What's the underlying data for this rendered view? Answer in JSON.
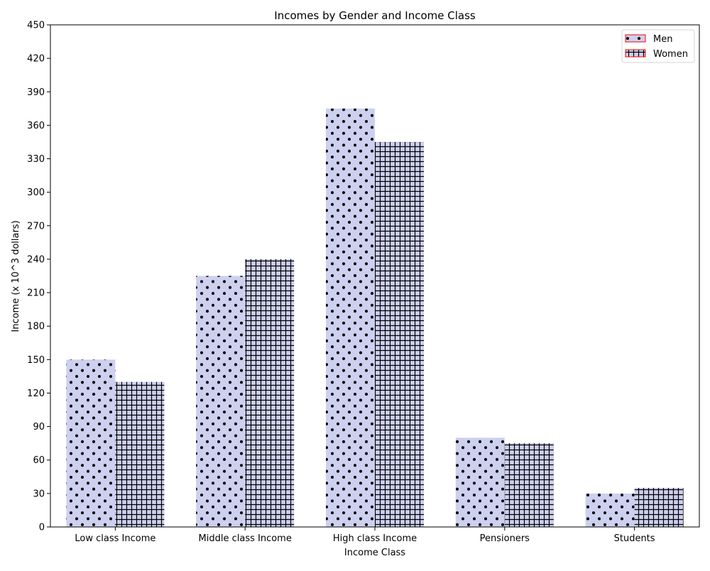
{
  "chart_data": {
    "type": "bar",
    "title": "Incomes by Gender and Income Class",
    "xlabel": "Income Class",
    "ylabel": "Income (x 10^3 dollars)",
    "categories": [
      "Low class Income",
      "Middle class Income",
      "High class Income",
      "Pensioners",
      "Students"
    ],
    "series": [
      {
        "name": "Men",
        "values": [
          150,
          225,
          375,
          80,
          30
        ],
        "hatch": "dots"
      },
      {
        "name": "Women",
        "values": [
          130,
          240,
          345,
          75,
          35
        ],
        "hatch": "grid"
      }
    ],
    "ylim": [
      0,
      450
    ],
    "yticks": [
      0,
      30,
      60,
      90,
      120,
      150,
      180,
      210,
      240,
      270,
      300,
      330,
      360,
      390,
      420,
      450
    ],
    "legend_position": "top-right",
    "grid": false,
    "colors": {
      "bar_fill": "#cdd0ee",
      "hatch": "#000000",
      "legend_edge": "#ff0000"
    }
  }
}
